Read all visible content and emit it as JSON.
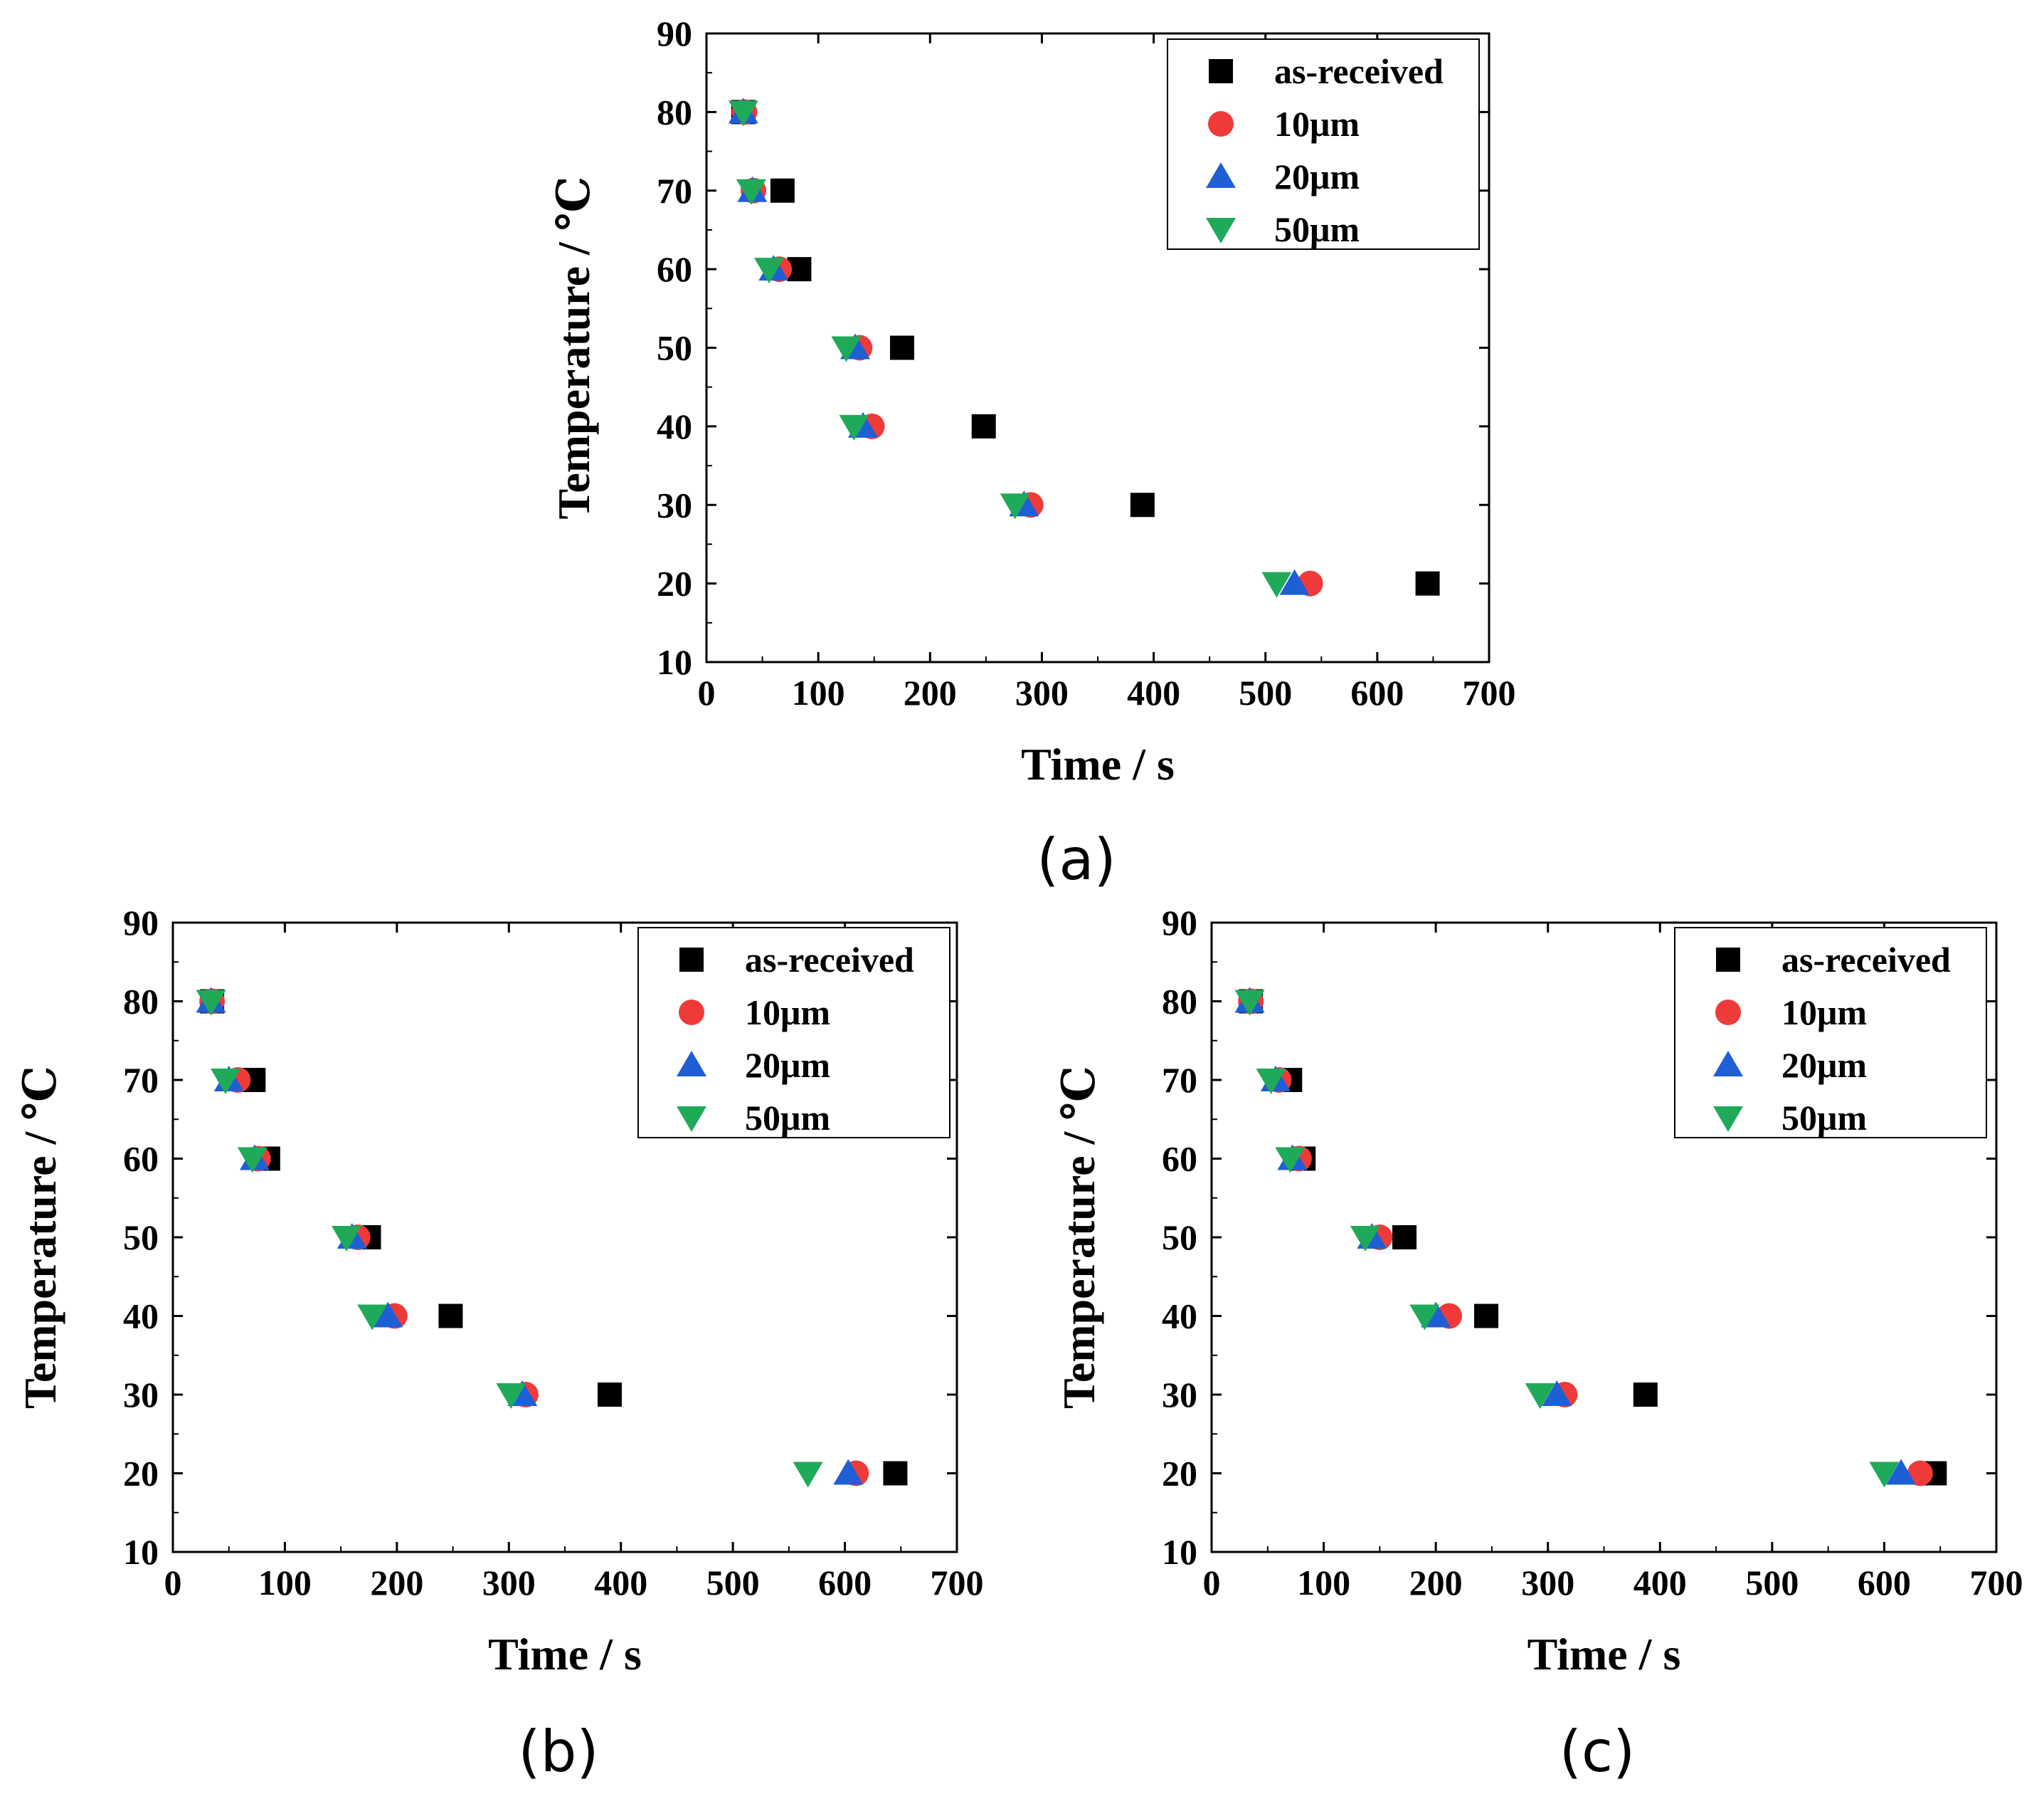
{
  "chart_data": [
    {
      "type": "scatter",
      "caption": "(a)",
      "xlabel": "Time / s",
      "ylabel": "Temperature / ℃",
      "xlim": [
        0,
        700
      ],
      "ylim": [
        10,
        90
      ],
      "xticks": [
        0,
        100,
        200,
        300,
        400,
        500,
        600,
        700
      ],
      "yticks": [
        10,
        20,
        30,
        40,
        50,
        60,
        70,
        80,
        90
      ],
      "grid": false,
      "legend_position": "top-right",
      "series": [
        {
          "name": "as-received",
          "marker": "square",
          "color": "#000000",
          "x": [
            33,
            68,
            83,
            175,
            248,
            390,
            645
          ],
          "y": [
            80,
            70,
            60,
            50,
            40,
            30,
            20
          ]
        },
        {
          "name": "10μm",
          "marker": "circle",
          "color": "#ef3a3a",
          "x": [
            34,
            42,
            65,
            137,
            148,
            290,
            540
          ],
          "y": [
            80,
            70,
            60,
            50,
            40,
            30,
            20
          ]
        },
        {
          "name": "20μm",
          "marker": "triangle-up",
          "color": "#1f5fd6",
          "x": [
            33,
            41,
            60,
            133,
            140,
            284,
            526
          ],
          "y": [
            80,
            70,
            60,
            50,
            40,
            30,
            20
          ]
        },
        {
          "name": "50μm",
          "marker": "triangle-down",
          "color": "#1faa5a",
          "x": [
            33,
            40,
            56,
            125,
            132,
            276,
            510
          ],
          "y": [
            80,
            70,
            60,
            50,
            40,
            30,
            20
          ]
        }
      ]
    },
    {
      "type": "scatter",
      "caption": "(b)",
      "xlabel": "Time / s",
      "ylabel": "Temperature / ℃",
      "xlim": [
        0,
        700
      ],
      "ylim": [
        10,
        90
      ],
      "xticks": [
        0,
        100,
        200,
        300,
        400,
        500,
        600,
        700
      ],
      "yticks": [
        10,
        20,
        30,
        40,
        50,
        60,
        70,
        80,
        90
      ],
      "grid": false,
      "legend_position": "top-right",
      "series": [
        {
          "name": "as-received",
          "marker": "square",
          "color": "#000000",
          "x": [
            35,
            72,
            85,
            175,
            248,
            390,
            645
          ],
          "y": [
            80,
            70,
            60,
            50,
            40,
            30,
            20
          ]
        },
        {
          "name": "10μm",
          "marker": "circle",
          "color": "#ef3a3a",
          "x": [
            35,
            58,
            76,
            165,
            198,
            315,
            610
          ],
          "y": [
            80,
            70,
            60,
            50,
            40,
            30,
            20
          ]
        },
        {
          "name": "20μm",
          "marker": "triangle-up",
          "color": "#1f5fd6",
          "x": [
            34,
            50,
            73,
            160,
            192,
            312,
            603
          ],
          "y": [
            80,
            70,
            60,
            50,
            40,
            30,
            20
          ]
        },
        {
          "name": "50μm",
          "marker": "triangle-down",
          "color": "#1faa5a",
          "x": [
            34,
            47,
            71,
            155,
            178,
            302,
            567
          ],
          "y": [
            80,
            70,
            60,
            50,
            40,
            30,
            20
          ]
        }
      ]
    },
    {
      "type": "scatter",
      "caption": "(c)",
      "xlabel": "Time / s",
      "ylabel": "Temperature / ℃",
      "xlim": [
        0,
        700
      ],
      "ylim": [
        10,
        90
      ],
      "xticks": [
        0,
        100,
        200,
        300,
        400,
        500,
        600,
        700
      ],
      "yticks": [
        10,
        20,
        30,
        40,
        50,
        60,
        70,
        80,
        90
      ],
      "grid": false,
      "legend_position": "top-right",
      "series": [
        {
          "name": "as-received",
          "marker": "square",
          "color": "#000000",
          "x": [
            35,
            70,
            82,
            172,
            245,
            387,
            645
          ],
          "y": [
            80,
            70,
            60,
            50,
            40,
            30,
            20
          ]
        },
        {
          "name": "10μm",
          "marker": "circle",
          "color": "#ef3a3a",
          "x": [
            35,
            60,
            78,
            150,
            212,
            315,
            632
          ],
          "y": [
            80,
            70,
            60,
            50,
            40,
            30,
            20
          ]
        },
        {
          "name": "20μm",
          "marker": "triangle-up",
          "color": "#1f5fd6",
          "x": [
            34,
            57,
            72,
            143,
            200,
            308,
            615
          ],
          "y": [
            80,
            70,
            60,
            50,
            40,
            30,
            20
          ]
        },
        {
          "name": "50μm",
          "marker": "triangle-down",
          "color": "#1faa5a",
          "x": [
            34,
            53,
            70,
            137,
            190,
            293,
            600
          ],
          "y": [
            80,
            70,
            60,
            50,
            40,
            30,
            20
          ]
        }
      ]
    }
  ]
}
